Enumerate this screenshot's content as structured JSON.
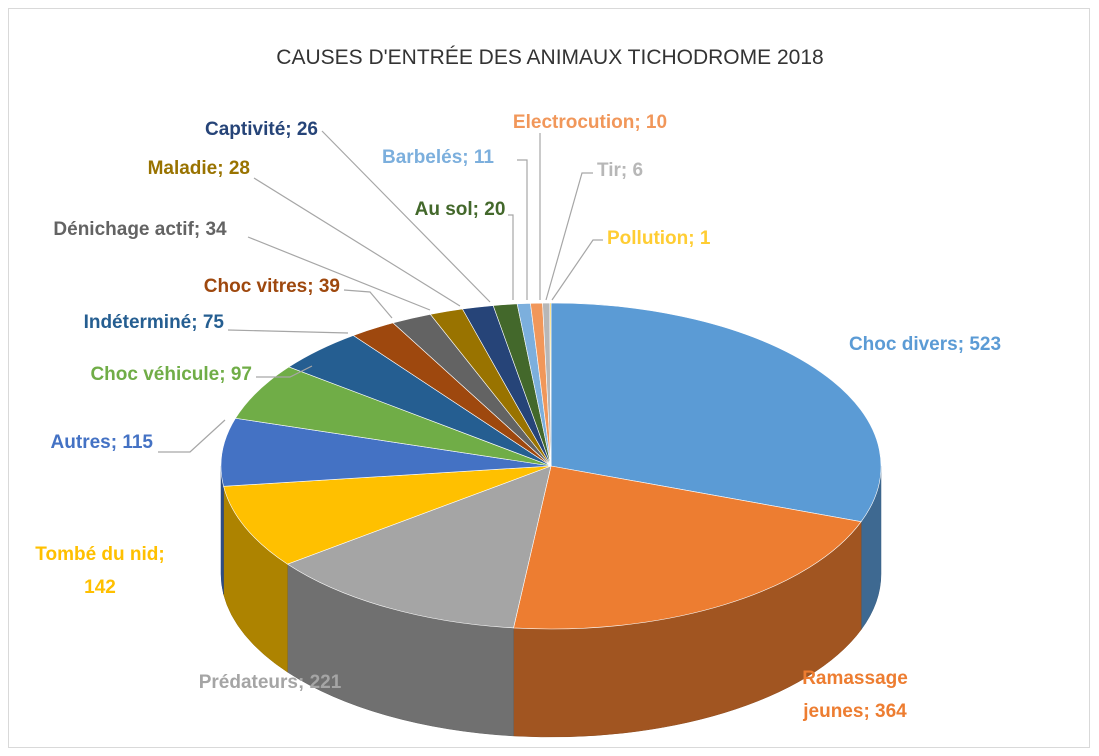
{
  "chart_data": {
    "type": "pie",
    "title": "CAUSES D'ENTRÉE DES ANIMAUX TICHODROME 2018",
    "categories": [
      "Choc divers",
      "Ramassage jeunes",
      "Prédateurs",
      "Tombé du nid",
      "Autres",
      "Choc véhicule",
      "Indéterminé",
      "Choc vitres",
      "Dénichage actif",
      "Maladie",
      "Captivité",
      "Au sol",
      "Barbelés",
      "Electrocution",
      "Tir",
      "Pollution"
    ],
    "values": [
      523,
      364,
      221,
      142,
      115,
      97,
      75,
      39,
      34,
      28,
      26,
      20,
      11,
      10,
      6,
      1
    ],
    "value_labels": [
      "Choc divers; 523",
      "Ramassage jeunes; 364",
      "Prédateurs; 221",
      "Tombé du nid; 142",
      "Autres; 115",
      "Choc véhicule; 97",
      "Indéterminé; 75",
      "Choc vitres; 39",
      "Dénichage actif; 34",
      "Maladie; 28",
      "Captivité; 26",
      "Au sol; 20",
      "Barbelés; 11",
      "Electrocution; 10",
      "Tir; 6",
      "Pollution; 1"
    ],
    "colors": [
      "#5b9bd5",
      "#ed7d31",
      "#a5a5a5",
      "#ffc000",
      "#4472c4",
      "#70ad47",
      "#255e91",
      "#9e480e",
      "#636363",
      "#997300",
      "#264478",
      "#43682b",
      "#7cafdd",
      "#f1975a",
      "#b7b7b7",
      "#ffcd33"
    ]
  }
}
